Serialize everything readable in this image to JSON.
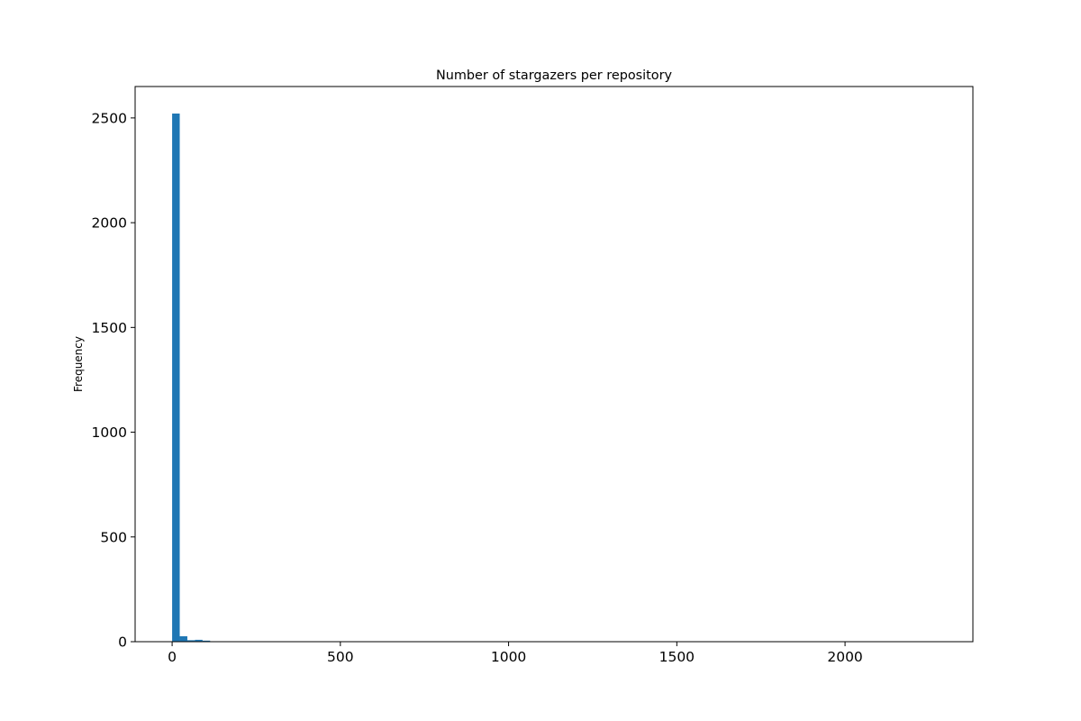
{
  "chart_data": {
    "type": "bar",
    "title": "Number of stargazers per repository",
    "xlabel": "",
    "ylabel": "Frequency",
    "xlim": [
      -110,
      2380
    ],
    "ylim": [
      0,
      2650
    ],
    "x_ticks": [
      0,
      500,
      1000,
      1500,
      2000
    ],
    "y_ticks": [
      0,
      500,
      1000,
      1500,
      2000,
      2500
    ],
    "x_tick_labels": [
      "0",
      "500",
      "1000",
      "1500",
      "2000"
    ],
    "y_tick_labels": [
      "0",
      "500",
      "1000",
      "1500",
      "2000",
      "2500"
    ],
    "bin_width": 22.6,
    "bin_starts": [
      0,
      22.6,
      45.2,
      67.8,
      90.4,
      113,
      135.6,
      158.2
    ],
    "values": [
      2521,
      26,
      7,
      9,
      5,
      2,
      1,
      1
    ],
    "grid": false,
    "color": "#1f77b4"
  }
}
